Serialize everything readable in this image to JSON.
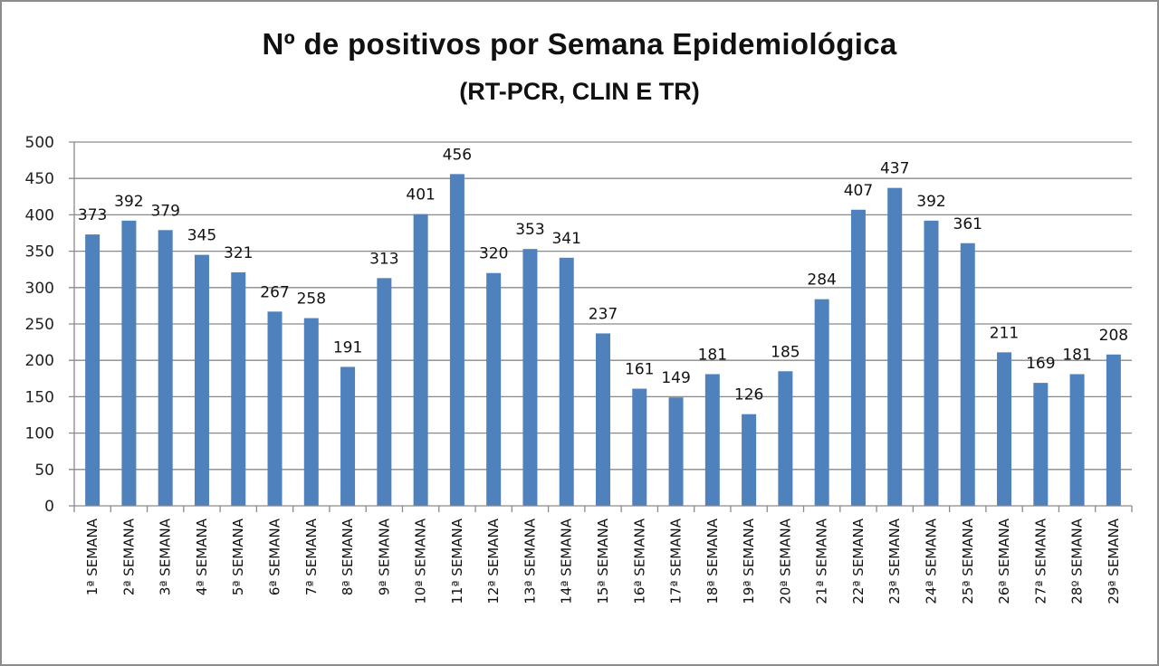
{
  "chart_data": {
    "type": "bar",
    "title": "Nº de positivos por Semana Epidemiológica",
    "subtitle": "(RT-PCR, CLIN E TR)",
    "xlabel": "",
    "ylabel": "",
    "ylim": [
      0,
      500
    ],
    "yticks": [
      0,
      50,
      100,
      150,
      200,
      250,
      300,
      350,
      400,
      450,
      500
    ],
    "grid": true,
    "legend": "none",
    "bar_color": "#4F81BD",
    "categories": [
      "1ª SEMANA",
      "2ª SEMANA",
      "3ª SEMANA",
      "4ª SEMANA",
      "5ª SEMANA",
      "6ª SEMANA",
      "7ª SEMANA",
      "8ª SEMANA",
      "9ª SEMANA",
      "10ª SEMANA",
      "11ª SEMANA",
      "12ª SEMANA",
      "13ª SEMANA",
      "14ª SEMANA",
      "15ª SEMANA",
      "16ª SEMANA",
      "17ª SEMANA",
      "18ª SEMANA",
      "19ª SEMANA",
      "20ª SEMANA",
      "21ª SEMANA",
      "22ª SEMANA",
      "23ª SEMANA",
      "24ª SEMANA",
      "25ª SEMANA",
      "26ª SEMANA",
      "27ª SEMANA",
      "28º SEMANA",
      "29ª SEMANA"
    ],
    "values": [
      373,
      392,
      379,
      345,
      321,
      267,
      258,
      191,
      313,
      401,
      456,
      320,
      353,
      341,
      237,
      161,
      149,
      181,
      126,
      185,
      284,
      407,
      437,
      392,
      361,
      211,
      169,
      181,
      208
    ]
  }
}
